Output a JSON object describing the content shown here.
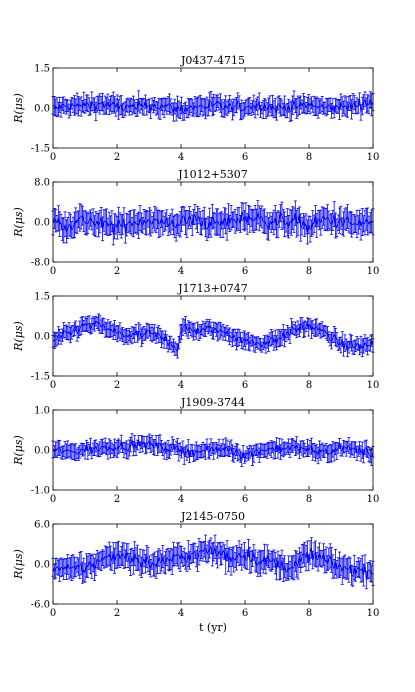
{
  "chart_data": [
    {
      "type": "line",
      "title": "J0437-4715",
      "ylabel": "R(μs)",
      "xlim": [
        0,
        10
      ],
      "ylim": [
        -1.5,
        1.5
      ],
      "x_ticks": [
        "0",
        "2",
        "4",
        "6",
        "8",
        "10"
      ],
      "y_ticks": [
        "-1.5",
        "0.0",
        "1.5"
      ],
      "grid": false,
      "series_color": "#0000ff",
      "series": [
        {
          "x": [
            0.0,
            0.5,
            1.0,
            1.5,
            2.0,
            2.5,
            3.0,
            3.5,
            4.0,
            4.5,
            5.0,
            5.5,
            6.0,
            6.5,
            7.0,
            7.5,
            8.0,
            8.5,
            9.0,
            9.5,
            10.0
          ],
          "y": [
            0.0,
            0.05,
            0.1,
            0.15,
            0.05,
            0.0,
            0.1,
            0.05,
            -0.05,
            0.05,
            0.1,
            0.0,
            0.05,
            0.1,
            0.0,
            0.05,
            0.1,
            0.0,
            0.05,
            0.1,
            0.25
          ],
          "yerr": [
            0.35,
            0.35,
            0.35,
            0.35,
            0.35,
            0.35,
            0.35,
            0.35,
            0.35,
            0.35,
            0.35,
            0.35,
            0.35,
            0.35,
            0.35,
            0.35,
            0.35,
            0.35,
            0.35,
            0.35,
            0.4
          ]
        }
      ]
    },
    {
      "type": "line",
      "title": "J1012+5307",
      "ylabel": "R(μs)",
      "xlim": [
        0,
        10
      ],
      "ylim": [
        -8.0,
        8.0
      ],
      "x_ticks": [
        "0",
        "2",
        "4",
        "6",
        "8",
        "10"
      ],
      "y_ticks": [
        "-8.0",
        "0.0",
        "8.0"
      ],
      "grid": false,
      "series_color": "#0000ff",
      "series": [
        {
          "x": [
            0.0,
            0.5,
            1.0,
            1.5,
            2.0,
            2.5,
            3.0,
            3.5,
            4.0,
            4.5,
            5.0,
            5.5,
            6.0,
            6.5,
            7.0,
            7.5,
            8.0,
            8.5,
            9.0,
            9.5,
            10.0
          ],
          "y": [
            0.0,
            -0.5,
            0.5,
            -0.5,
            -1.0,
            0.0,
            0.5,
            -0.5,
            0.0,
            0.5,
            -0.5,
            0.0,
            1.0,
            0.5,
            0.0,
            0.5,
            -1.0,
            0.5,
            0.0,
            -0.5,
            0.0
          ],
          "yerr": [
            2.5,
            2.5,
            2.5,
            2.5,
            2.5,
            2.5,
            2.5,
            2.5,
            2.5,
            2.5,
            2.5,
            2.5,
            2.5,
            2.5,
            2.5,
            2.5,
            2.5,
            2.5,
            2.5,
            2.5,
            2.5
          ]
        }
      ]
    },
    {
      "type": "line",
      "title": "J1713+0747",
      "ylabel": "R(μs)",
      "xlim": [
        0,
        10
      ],
      "ylim": [
        -1.5,
        1.5
      ],
      "x_ticks": [
        "0",
        "2",
        "4",
        "6",
        "8",
        "10"
      ],
      "y_ticks": [
        "-1.5",
        "0.0",
        "1.5"
      ],
      "grid": false,
      "series_color": "#0000ff",
      "series": [
        {
          "x": [
            0.0,
            0.5,
            1.0,
            1.5,
            2.0,
            2.5,
            3.0,
            3.5,
            3.9,
            4.0,
            4.5,
            5.0,
            5.5,
            6.0,
            6.5,
            7.0,
            7.5,
            8.0,
            8.5,
            9.0,
            9.5,
            10.0
          ],
          "y": [
            -0.2,
            0.1,
            0.4,
            0.4,
            0.1,
            0.0,
            0.1,
            -0.1,
            -0.5,
            0.3,
            0.2,
            0.25,
            0.1,
            -0.2,
            -0.3,
            -0.1,
            0.2,
            0.4,
            0.1,
            -0.3,
            -0.4,
            -0.3
          ],
          "yerr": [
            0.3,
            0.3,
            0.3,
            0.3,
            0.3,
            0.3,
            0.3,
            0.3,
            0.3,
            0.3,
            0.3,
            0.3,
            0.3,
            0.3,
            0.3,
            0.3,
            0.3,
            0.3,
            0.3,
            0.3,
            0.3,
            0.3
          ]
        }
      ]
    },
    {
      "type": "line",
      "title": "J1909-3744",
      "ylabel": "R(μs)",
      "xlim": [
        0,
        10
      ],
      "ylim": [
        -1.0,
        1.0
      ],
      "x_ticks": [
        "0",
        "2",
        "4",
        "6",
        "8",
        "10"
      ],
      "y_ticks": [
        "-1.0",
        "0.0",
        "1.0"
      ],
      "grid": false,
      "series_color": "#0000ff",
      "series": [
        {
          "x": [
            0.0,
            0.5,
            1.0,
            1.5,
            2.0,
            2.5,
            3.0,
            3.5,
            4.0,
            4.5,
            5.0,
            5.5,
            6.0,
            6.5,
            7.0,
            7.5,
            8.0,
            8.5,
            9.0,
            9.5,
            10.0
          ],
          "y": [
            0.0,
            -0.05,
            0.0,
            0.05,
            0.1,
            0.1,
            0.15,
            0.05,
            0.0,
            -0.05,
            0.0,
            0.05,
            -0.15,
            0.0,
            0.05,
            0.05,
            0.0,
            -0.05,
            0.05,
            0.0,
            -0.1
          ],
          "yerr": [
            0.2,
            0.2,
            0.2,
            0.2,
            0.2,
            0.2,
            0.2,
            0.2,
            0.2,
            0.2,
            0.2,
            0.2,
            0.2,
            0.2,
            0.2,
            0.2,
            0.2,
            0.2,
            0.2,
            0.2,
            0.2
          ]
        }
      ]
    },
    {
      "type": "line",
      "title": "J2145-0750",
      "ylabel": "R(μs)",
      "xlabel": "t (yr)",
      "xlim": [
        0,
        10
      ],
      "ylim": [
        -6.0,
        6.0
      ],
      "x_ticks": [
        "0",
        "2",
        "4",
        "6",
        "8",
        "10"
      ],
      "y_ticks": [
        "-6.0",
        "0.0",
        "6.0"
      ],
      "grid": false,
      "series_color": "#0000ff",
      "series": [
        {
          "x": [
            0.0,
            0.5,
            1.0,
            1.5,
            2.0,
            2.5,
            3.0,
            3.5,
            4.0,
            4.5,
            5.0,
            5.5,
            6.0,
            6.5,
            7.0,
            7.5,
            8.0,
            8.5,
            9.0,
            9.5,
            10.0
          ],
          "y": [
            -0.5,
            -1.0,
            -0.5,
            0.5,
            1.5,
            1.0,
            0.0,
            0.5,
            1.0,
            1.5,
            2.0,
            1.0,
            1.5,
            0.5,
            0.0,
            -0.5,
            1.5,
            0.5,
            -0.5,
            -1.0,
            -1.0
          ],
          "yerr": [
            1.8,
            1.8,
            1.8,
            1.8,
            1.8,
            1.8,
            1.8,
            1.8,
            1.8,
            1.8,
            1.8,
            1.8,
            1.8,
            1.8,
            1.8,
            1.8,
            1.8,
            1.8,
            1.8,
            1.8,
            1.8
          ]
        }
      ]
    }
  ]
}
